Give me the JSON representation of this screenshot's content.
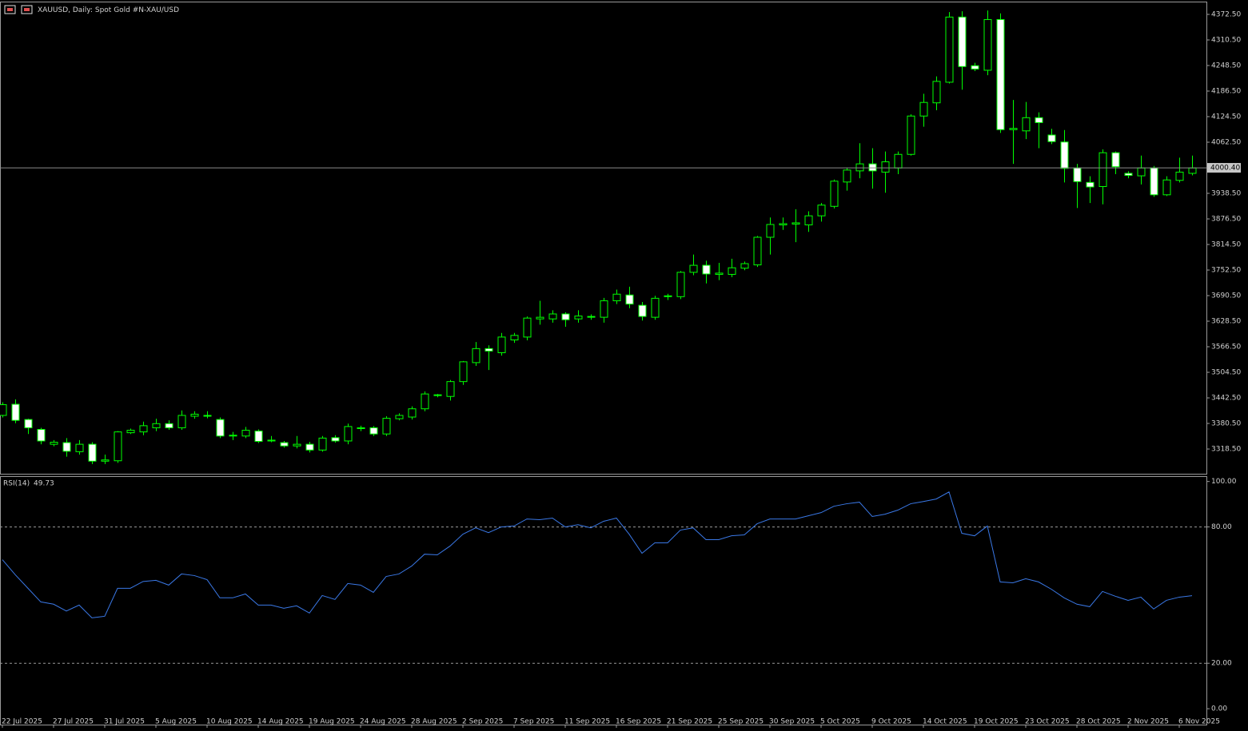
{
  "chart_data": [
    {
      "type": "candlestick",
      "title": "XAUUSD, Daily:  Spot Gold #N-XAU/USD",
      "categories": [
        "22 Jul 2025",
        null,
        null,
        null,
        "27 Jul 2025",
        null,
        null,
        null,
        "31 Jul 2025",
        null,
        null,
        null,
        "5 Aug 2025",
        null,
        null,
        null,
        "10 Aug 2025",
        null,
        null,
        null,
        "14 Aug 2025",
        null,
        null,
        null,
        "19 Aug 2025",
        null,
        null,
        null,
        "24 Aug 2025",
        null,
        null,
        null,
        "28 Aug 2025",
        null,
        null,
        null,
        "2 Sep 2025",
        null,
        null,
        null,
        "7 Sep 2025",
        null,
        null,
        null,
        "11 Sep 2025",
        null,
        null,
        null,
        "16 Sep 2025",
        null,
        null,
        null,
        "21 Sep 2025",
        null,
        null,
        null,
        "25 Sep 2025",
        null,
        null,
        null,
        "30 Sep 2025",
        null,
        null,
        null,
        "5 Oct 2025",
        null,
        null,
        null,
        "9 Oct 2025",
        null,
        null,
        null,
        "14 Oct 2025",
        null,
        null,
        null,
        "19 Oct 2025",
        null,
        null,
        null,
        "23 Oct 2025",
        null,
        null,
        null,
        "28 Oct 2025",
        null,
        null,
        null,
        "2 Nov 2025",
        null,
        null,
        null,
        "6 Nov 2025",
        null
      ],
      "open": [
        3400,
        3427,
        3390,
        3366,
        3330,
        3334,
        3312,
        3330,
        3289,
        3290,
        3358,
        3360,
        3370,
        3380,
        3370,
        3398,
        3400,
        3390,
        3350,
        3350,
        3362,
        3338,
        3334,
        3326,
        3330,
        3316,
        3346,
        3338,
        3368,
        3370,
        3355,
        3392,
        3396,
        3416,
        3448,
        3446,
        3482,
        3528,
        3562,
        3552,
        3583,
        3590,
        3634,
        3634,
        3646,
        3634,
        3640,
        3638,
        3678,
        3692,
        3667,
        3638,
        3688,
        3688,
        3747,
        3764,
        3742,
        3742,
        3757,
        3765,
        3832,
        3862,
        3864,
        3862,
        3884,
        3907,
        3966,
        3993,
        4010,
        3990,
        4000,
        4033,
        4126,
        4158,
        4208,
        4366,
        4248,
        4237,
        4360,
        4093,
        4090,
        4122,
        4080,
        4063,
        4000,
        3965,
        3955,
        4037,
        3987,
        3981,
        4000,
        3935,
        3970,
        3987
      ],
      "high": [
        3432,
        3439,
        3392,
        3370,
        3340,
        3345,
        3340,
        3335,
        3305,
        3362,
        3368,
        3385,
        3392,
        3388,
        3412,
        3410,
        3410,
        3395,
        3360,
        3372,
        3366,
        3350,
        3338,
        3350,
        3336,
        3350,
        3352,
        3380,
        3375,
        3374,
        3398,
        3405,
        3422,
        3458,
        3452,
        3486,
        3532,
        3578,
        3570,
        3600,
        3600,
        3640,
        3678,
        3655,
        3650,
        3655,
        3645,
        3685,
        3705,
        3712,
        3675,
        3690,
        3695,
        3750,
        3790,
        3775,
        3770,
        3780,
        3773,
        3835,
        3880,
        3880,
        3900,
        3895,
        3915,
        3972,
        4000,
        4060,
        4048,
        4040,
        4040,
        4130,
        4180,
        4222,
        4378,
        4380,
        4255,
        4382,
        4375,
        4165,
        4160,
        4135,
        4095,
        4092,
        4010,
        3980,
        4045,
        4040,
        3992,
        4030,
        4005,
        3980,
        4025,
        4030
      ],
      "low": [
        3395,
        3381,
        3355,
        3330,
        3325,
        3300,
        3305,
        3282,
        3282,
        3285,
        3355,
        3352,
        3362,
        3365,
        3365,
        3392,
        3393,
        3345,
        3340,
        3345,
        3333,
        3335,
        3322,
        3320,
        3310,
        3312,
        3334,
        3330,
        3362,
        3350,
        3350,
        3388,
        3390,
        3410,
        3444,
        3436,
        3474,
        3520,
        3510,
        3545,
        3576,
        3582,
        3620,
        3625,
        3615,
        3625,
        3632,
        3625,
        3670,
        3660,
        3630,
        3632,
        3680,
        3682,
        3740,
        3720,
        3728,
        3735,
        3752,
        3760,
        3790,
        3850,
        3820,
        3845,
        3870,
        3902,
        3945,
        3975,
        3950,
        3940,
        3985,
        4030,
        4100,
        4140,
        4205,
        4190,
        4235,
        4225,
        4085,
        4010,
        4070,
        4048,
        4058,
        3965,
        3903,
        3915,
        3912,
        3985,
        3975,
        3960,
        3930,
        3932,
        3965,
        3982
      ],
      "close": [
        3426,
        3388,
        3370,
        3338,
        3335,
        3313,
        3330,
        3289,
        3292,
        3360,
        3364,
        3375,
        3380,
        3370,
        3400,
        3403,
        3398,
        3350,
        3352,
        3364,
        3337,
        3340,
        3326,
        3330,
        3316,
        3345,
        3338,
        3373,
        3370,
        3355,
        3393,
        3400,
        3416,
        3452,
        3450,
        3482,
        3530,
        3562,
        3556,
        3590,
        3594,
        3636,
        3638,
        3646,
        3632,
        3641,
        3638,
        3678,
        3694,
        3670,
        3640,
        3684,
        3690,
        3747,
        3764,
        3743,
        3745,
        3758,
        3768,
        3832,
        3863,
        3865,
        3867,
        3884,
        3910,
        3968,
        3995,
        4010,
        3993,
        4015,
        4033,
        4126,
        4159,
        4210,
        4366,
        4246,
        4240,
        4360,
        4093,
        4096,
        4122,
        4110,
        4064,
        3999,
        3967,
        3954,
        4037,
        4003,
        3982,
        4000,
        3935,
        3971,
        3990,
        4000
      ],
      "up_color": "#00ff00",
      "down_color": "#ffffff",
      "ylim": [
        3258.5,
        4403.5
      ],
      "yticks": [
        {
          "value": 4372.5,
          "label": "4372.50"
        },
        {
          "value": 4310.5,
          "label": "4310.50"
        },
        {
          "value": 4248.5,
          "label": "4248.50"
        },
        {
          "value": 4186.5,
          "label": "4186.50"
        },
        {
          "value": 4124.5,
          "label": "4124.50"
        },
        {
          "value": 4062.5,
          "label": "4062.50"
        },
        {
          "value": 3938.5,
          "label": "3938.50"
        },
        {
          "value": 3876.5,
          "label": "3876.50"
        },
        {
          "value": 3814.5,
          "label": "3814.50"
        },
        {
          "value": 3752.5,
          "label": "3752.50"
        },
        {
          "value": 3690.5,
          "label": "3690.50"
        },
        {
          "value": 3628.5,
          "label": "3628.50"
        },
        {
          "value": 3566.5,
          "label": "3566.50"
        },
        {
          "value": 3504.5,
          "label": "3504.50"
        },
        {
          "value": 3442.5,
          "label": "3442.50"
        },
        {
          "value": 3380.5,
          "label": "3380.50"
        },
        {
          "value": 3318.5,
          "label": "3318.50"
        }
      ],
      "current_price": {
        "value": 4000.4,
        "label": "4000.40"
      }
    },
    {
      "type": "line",
      "title": "RSI(14)",
      "current_value": 49.73,
      "color": "#3a78e6",
      "values": [
        65.6,
        59,
        53,
        47,
        46,
        43,
        45.6,
        40,
        40.7,
        53,
        53,
        56,
        56.5,
        54.4,
        59.3,
        58.6,
        56.8,
        48.8,
        48.8,
        50.5,
        45.6,
        45.6,
        44.2,
        45.3,
        42.1,
        49.8,
        48.1,
        55.1,
        54.4,
        51.2,
        58.2,
        59.3,
        62.8,
        68,
        67.7,
        71.6,
        76.8,
        79.6,
        77.5,
        80,
        80.4,
        83.5,
        83.2,
        83.9,
        80,
        81,
        79.6,
        82.5,
        83.9,
        76.8,
        68.4,
        73,
        73,
        78.6,
        79.6,
        74.4,
        74.4,
        76.1,
        76.5,
        81.4,
        83.5,
        83.5,
        83.5,
        84.9,
        86.3,
        89.1,
        90.2,
        90.9,
        84.6,
        85.6,
        87.4,
        90.2,
        91.2,
        92.3,
        95.4,
        77.2,
        76.1,
        80.4,
        55.8,
        55.4,
        57.2,
        55.8,
        52.6,
        48.8,
        46,
        44.9,
        51.6,
        49.5,
        47.7,
        49.1,
        43.9,
        47.7,
        49.1,
        49.73
      ],
      "ylim": [
        -7,
        102
      ],
      "yticks": [
        {
          "value": 100,
          "label": "100.00"
        },
        {
          "value": 80,
          "label": "80.00"
        },
        {
          "value": 20,
          "label": "20.00"
        },
        {
          "value": 0,
          "label": "0.00"
        }
      ],
      "levels": [
        80,
        20
      ]
    }
  ]
}
